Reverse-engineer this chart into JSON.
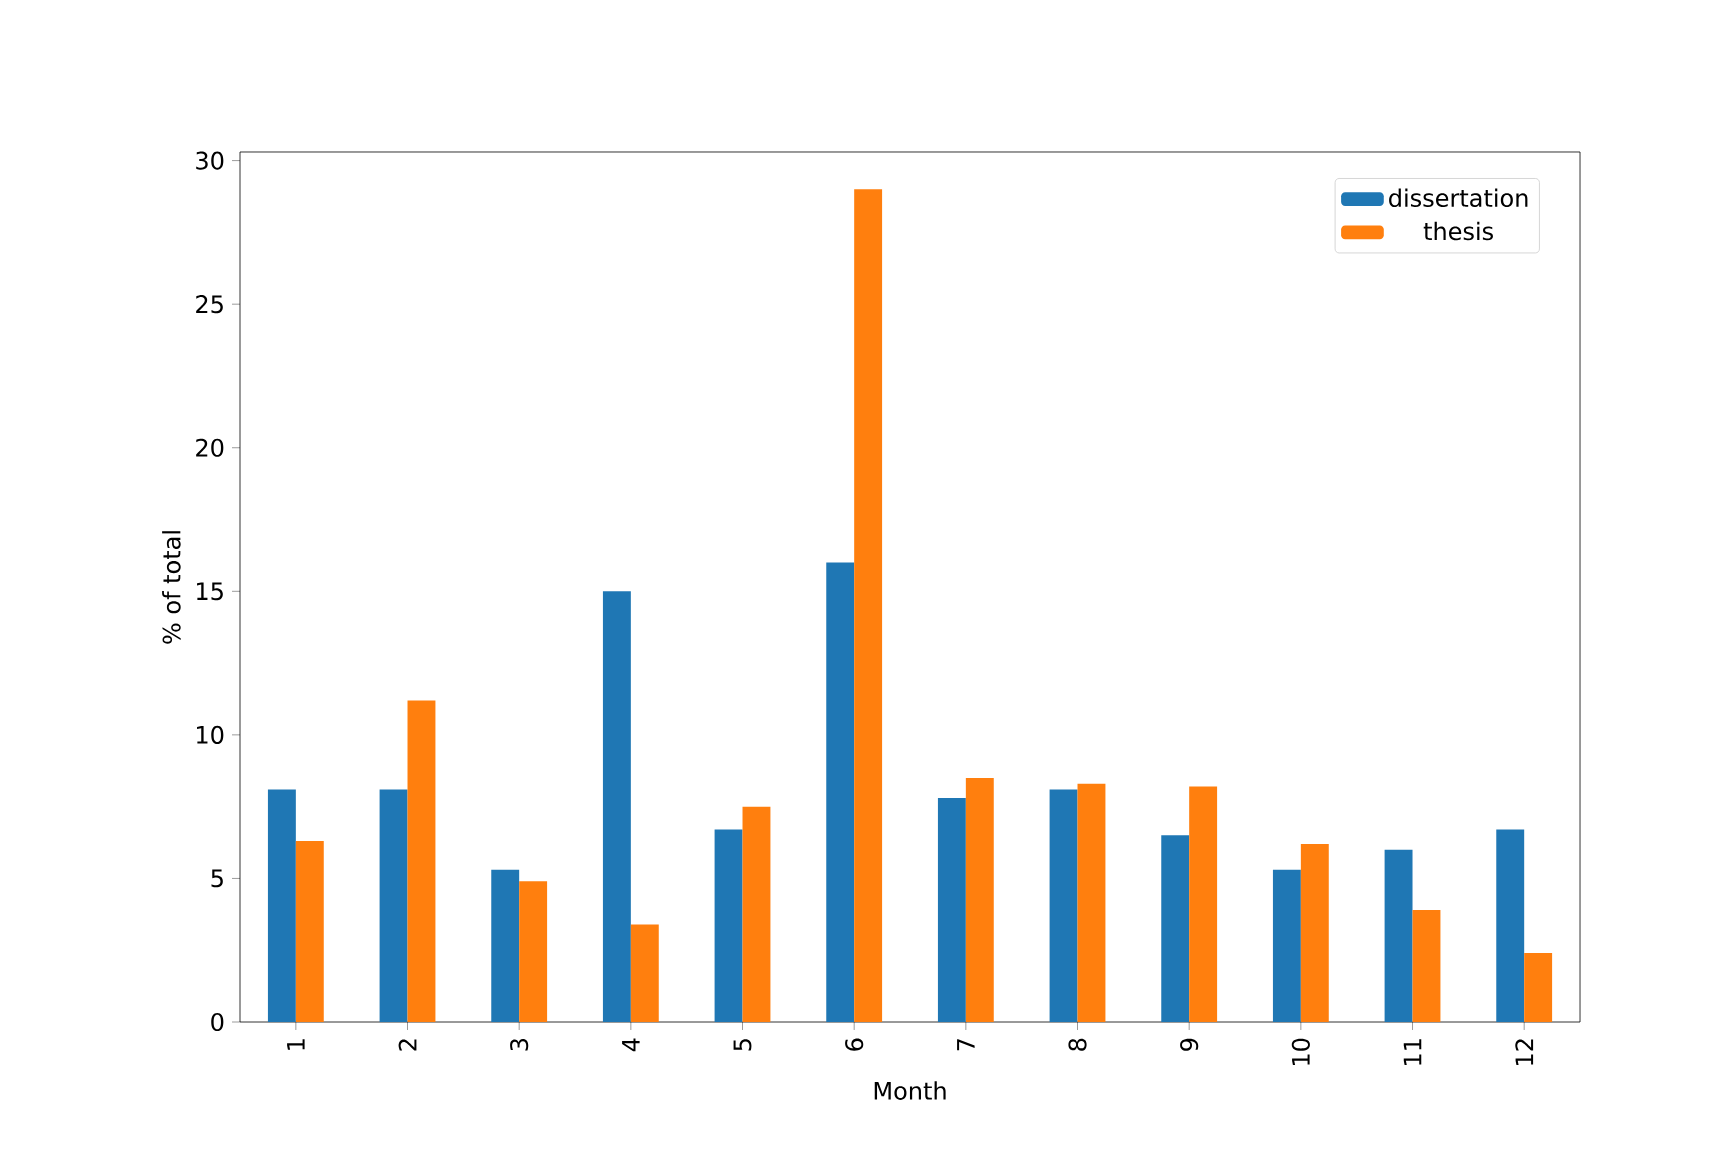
{
  "chart_data": {
    "type": "bar",
    "xlabel": "Month",
    "ylabel": "% of total",
    "categories": [
      "1",
      "2",
      "3",
      "4",
      "5",
      "6",
      "7",
      "8",
      "9",
      "10",
      "11",
      "12"
    ],
    "series": [
      {
        "name": "dissertation",
        "color": "#1f77b4",
        "values": [
          8.1,
          8.1,
          5.3,
          15.0,
          6.7,
          16.0,
          7.8,
          8.1,
          6.5,
          5.3,
          6.0,
          6.7
        ]
      },
      {
        "name": "thesis",
        "color": "#ff7f0e",
        "values": [
          6.3,
          11.2,
          4.9,
          3.4,
          7.5,
          29.0,
          8.5,
          8.3,
          8.2,
          6.2,
          3.9,
          2.4
        ]
      }
    ],
    "ylim": [
      0,
      30.3
    ],
    "yticks": [
      0,
      5,
      10,
      15,
      20,
      25,
      30
    ],
    "legend": "top right",
    "grid": false
  }
}
